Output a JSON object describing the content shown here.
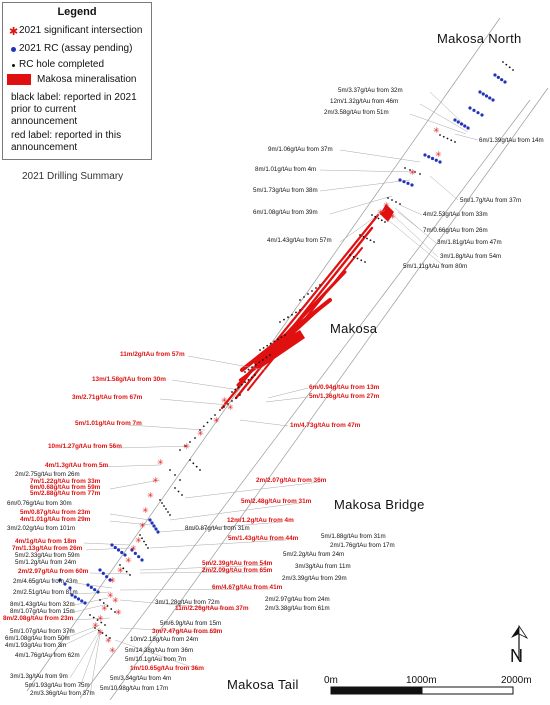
{
  "legend": {
    "title": "Legend",
    "items": {
      "significant": "2021 significant intersection",
      "rc_pending": "2021 RC (assay pending)",
      "rc_completed": "RC hole completed",
      "mineralisation": "Makosa mineralisation"
    },
    "notes": {
      "black": "black label: reported in 2021 prior to current announcement",
      "red": "red label: reported in this announcement"
    }
  },
  "subtitle": "2021 Drilling Summary",
  "area_labels": {
    "north": "Makosa North",
    "makosa": "Makosa",
    "bridge": "Makosa Bridge",
    "tail": "Makosa Tail"
  },
  "scale_bar": {
    "labels": [
      "0m",
      "1000m",
      "2000m"
    ]
  },
  "north_arrow": {
    "letter": "N"
  },
  "colors": {
    "red": "#e01010",
    "blue": "#2233bb",
    "black": "#111111",
    "leader": "#a8a8a8",
    "corridor": "#9a9a9a"
  },
  "labels_black": [
    "5m/3.37g/tAu from 32m",
    "12m/1.32g/tAu from 46m",
    "2m/3.58g/tAu from 51m",
    "6m/1.39g/tAu from 14m",
    "9m/1.06g/tAu from 37m",
    "8m/1.01g/tAu from 4m",
    "5m/1.73g/tAu from 38m",
    "5m/1.7g/tAu from 37m",
    "6m/1.08g/tAu from 39m",
    "4m/2.53g/tAu from 33m",
    "7m/0.66g/tAu from 26m",
    "4m/1.43g/tAu from 57m",
    "3m/1.81g/tAu from 47m",
    "3m/1.8g/tAu from 54m",
    "5m/1.11g/tAu from 80m",
    "2m/2.75g/tAu from 26m",
    "6m/0.76g/tAu from 30m",
    "3m/2.02g/tAu from 101m",
    "8m/0.87g/tAu from 31m",
    "5m/1.88g/tAu from 31m",
    "2m/1.76g/tAu from 17m",
    "5m/2.2g/tAu from 24m",
    "3m/3g/tAu from 11m",
    "2m/3.39g/tAu from 29m",
    "2m/2.97g/tAu from 24m",
    "2m/3.38g/tAu from 61m",
    "2m/2.51g/tAu from 81m",
    "2m/4.65g/tAu from 43m",
    "3m/1.28g/tAu from 72m",
    "8m/1.43g/tAu from 32m",
    "8m/1.07g/tAu from 15m",
    "5m/6.9g/tAu from 15m",
    "5m/1.07g/tAu from 37m",
    "6m/1.08g/tAu from 50m",
    "10m/2.18g/tAu from 24m",
    "4m/1.93g/tAu from 3m",
    "5m/14.38g/tAu from 36m",
    "4m/1.76g/tAu from 62m",
    "5m/10.1g/tAu from 7m",
    "3m/1.3g/tAu from 9m",
    "5m/3.34g/tAu from 4m",
    "5m/1.93g/tAu from 75m",
    "5m/10.98g/tAu from 17m",
    "2m/3.36g/tAu from 37m",
    "5m/1.2g/tAu from 24m",
    "5m/2.33g/tAu from 59m"
  ],
  "labels_red": [
    "11m/2g/tAu from 57m",
    "13m/1.58g/tAu from 30m",
    "6m/0.94g/tAu from 13m",
    "5m/1.36g/tAu from 27m",
    "3m/2.71g/tAu from 67m",
    "5m/1.01g/tAu from 7m",
    "1m/4.73g/tAu from 47m",
    "10m/1.27g/tAu from 56m",
    "4m/1.3g/tAu from 5m",
    "7m/1.22g/tAu from 33m",
    "6m/0.68g/tAu from 59m",
    "5m/2.88g/tAu from 77m",
    "2m/2.07g/tAu from 36m",
    "5m/2.48g/tAu from 31m",
    "5m/0.87g/tAu from 23m",
    "4m/1.01g/tAu from 29m",
    "12m/1.2g/tAu from 4m",
    "5m/1.43g/tAu from 44m",
    "4m/1g/tAu from 18m",
    "7m/1.13g/tAu from 26m",
    "5m/2.39g/tAu from 54m",
    "2m/2.09g/tAu from 65m",
    "2m/2.97g/tAu from 60m",
    "6m/4.67g/tAu from 41m",
    "11m/2.26g/tAu from 37m",
    "8m/2.08g/tAu from 23m",
    "3m/7.47g/tAu from 69m",
    "1m/10.65g/tAu from 36m"
  ]
}
